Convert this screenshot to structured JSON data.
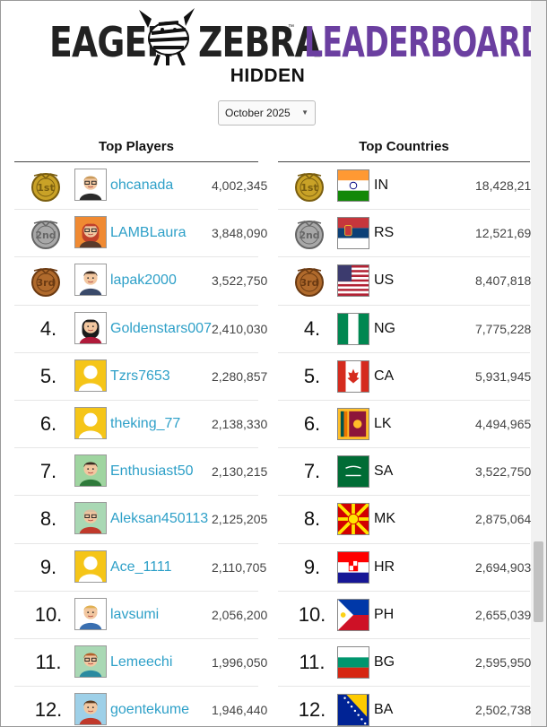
{
  "header": {
    "logo_eager": "EAGER",
    "logo_zebra": "ZEBRA",
    "logo_tm": "™",
    "logo_leaderboard": "LEADERBOARD",
    "subtitle": "HIDDEN"
  },
  "month_select": {
    "value": "October 2025"
  },
  "players": {
    "title": "Top Players",
    "rows": [
      {
        "rank": "1",
        "medal": "gold",
        "name": "ohcanada",
        "score": "4,002,345",
        "avatar": "man-sunglasses"
      },
      {
        "rank": "2",
        "medal": "silver",
        "name": "LAMBLaura",
        "score": "3,848,090",
        "avatar": "woman-redhead"
      },
      {
        "rank": "3",
        "medal": "bronze",
        "name": "lapak2000",
        "score": "3,522,750",
        "avatar": "man-suit"
      },
      {
        "rank": "4.",
        "name": "Goldenstars007",
        "score": "2,410,030",
        "avatar": "woman-dark-hair"
      },
      {
        "rank": "5.",
        "name": "Tzrs7653",
        "score": "2,280,857",
        "avatar": "default"
      },
      {
        "rank": "6.",
        "name": "theking_77",
        "score": "2,138,330",
        "avatar": "default"
      },
      {
        "rank": "7.",
        "name": "Enthusiast50",
        "score": "2,130,215",
        "avatar": "man-green-bg"
      },
      {
        "rank": "8.",
        "name": "Aleksan450113",
        "score": "2,125,205",
        "avatar": "man-bald-glasses"
      },
      {
        "rank": "9.",
        "name": "Ace_1111",
        "score": "2,110,705",
        "avatar": "default"
      },
      {
        "rank": "10.",
        "name": "lavsumi",
        "score": "2,056,200",
        "avatar": "man-blond"
      },
      {
        "rank": "11.",
        "name": "Lemeechi",
        "score": "1,996,050",
        "avatar": "man-beard-glasses"
      },
      {
        "rank": "12.",
        "name": "goentekume",
        "score": "1,946,440",
        "avatar": "man-red-shirt"
      }
    ]
  },
  "countries": {
    "title": "Top Countries",
    "rows": [
      {
        "rank": "1",
        "medal": "gold",
        "code": "IN",
        "score": "18,428,21"
      },
      {
        "rank": "2",
        "medal": "silver",
        "code": "RS",
        "score": "12,521,69"
      },
      {
        "rank": "3",
        "medal": "bronze",
        "code": "US",
        "score": "8,407,818"
      },
      {
        "rank": "4.",
        "code": "NG",
        "score": "7,775,228"
      },
      {
        "rank": "5.",
        "code": "CA",
        "score": "5,931,945"
      },
      {
        "rank": "6.",
        "code": "LK",
        "score": "4,494,965"
      },
      {
        "rank": "7.",
        "code": "SA",
        "score": "3,522,750"
      },
      {
        "rank": "8.",
        "code": "MK",
        "score": "2,875,064"
      },
      {
        "rank": "9.",
        "code": "HR",
        "score": "2,694,903"
      },
      {
        "rank": "10.",
        "code": "PH",
        "score": "2,655,039"
      },
      {
        "rank": "11.",
        "code": "BG",
        "score": "2,595,950"
      },
      {
        "rank": "12.",
        "code": "BA",
        "score": "2,502,738"
      }
    ]
  },
  "colors": {
    "accent_purple": "#6b3fa0",
    "player_link": "#2ea0c8"
  }
}
